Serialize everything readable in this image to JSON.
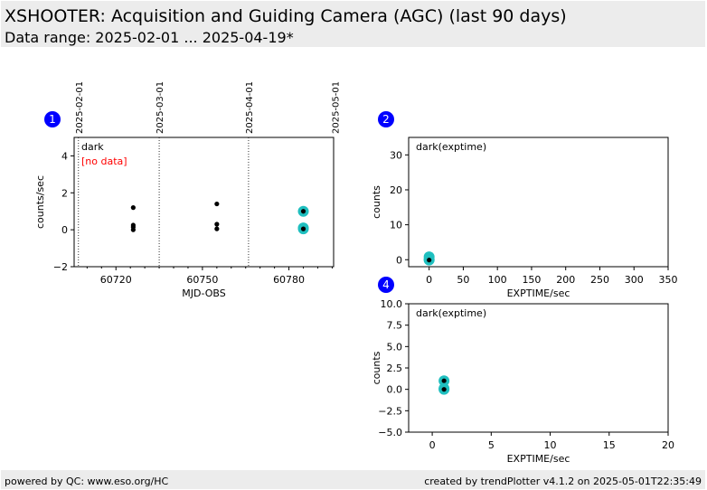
{
  "header": {
    "title": "XSHOOTER: Acquisition and Guiding Camera (AGC) (last 90 days)",
    "subtitle": "Data range: 2025-02-01 ... 2025-04-19*"
  },
  "footer": {
    "left": "powered by QC: www.eso.org/HC",
    "right": "created by trendPlotter v4.1.2 on 2025-05-01T22:35:49"
  },
  "colors": {
    "marker": "#000000",
    "highlight": "#1fbfbf",
    "nodata": "#ff0000",
    "badge": "#0000ff"
  },
  "chart_data": [
    {
      "id": 1,
      "type": "scatter",
      "label": "dark",
      "note": "[no data]",
      "xlabel": "MJD-OBS",
      "ylabel": "counts/sec",
      "xlim": [
        60705.5,
        60795.5
      ],
      "ylim": [
        -2,
        5
      ],
      "xticks": [
        60720,
        60750,
        60780
      ],
      "xtick_labels": [
        "60720",
        "60750",
        "60780"
      ],
      "yticks": [
        -2,
        0,
        2,
        4
      ],
      "ytick_labels": [
        "−2",
        "0",
        "2",
        "4"
      ],
      "date_markers": [
        {
          "x": 60707,
          "label": "2025-02-01"
        },
        {
          "x": 60735,
          "label": "2025-03-01"
        },
        {
          "x": 60766,
          "label": "2025-04-01"
        },
        {
          "x": 60796,
          "label": "2025-05-01"
        }
      ],
      "points": [
        {
          "x": 60726,
          "y": 1.2
        },
        {
          "x": 60726,
          "y": 0.25
        },
        {
          "x": 60726,
          "y": 0.15
        },
        {
          "x": 60726,
          "y": 0.0
        },
        {
          "x": 60755,
          "y": 1.4
        },
        {
          "x": 60755,
          "y": 0.3
        },
        {
          "x": 60755,
          "y": 0.05
        },
        {
          "x": 60785,
          "y": 1.0,
          "highlight": true
        },
        {
          "x": 60785,
          "y": 0.1,
          "highlight": true
        },
        {
          "x": 60785,
          "y": 0.05,
          "highlight": true
        }
      ]
    },
    {
      "id": 2,
      "type": "scatter",
      "label": "dark(exptime)",
      "xlabel": "EXPTIME/sec",
      "ylabel": "counts",
      "xlim": [
        -30,
        350
      ],
      "ylim": [
        -2,
        35
      ],
      "xticks": [
        0,
        50,
        100,
        150,
        200,
        250,
        300,
        350
      ],
      "xtick_labels": [
        "0",
        "50",
        "100",
        "150",
        "200",
        "250",
        "300",
        "350"
      ],
      "yticks": [
        0,
        10,
        20,
        30
      ],
      "ytick_labels": [
        "0",
        "10",
        "20",
        "30"
      ],
      "points": [
        {
          "x": 0,
          "y": 0.8,
          "highlight": true
        },
        {
          "x": 0,
          "y": 0.1,
          "highlight": true
        },
        {
          "x": 0,
          "y": -0.1,
          "highlight": true
        }
      ]
    },
    {
      "id": 4,
      "type": "scatter",
      "label": "dark(exptime)",
      "xlabel": "EXPTIME/sec",
      "ylabel": "counts",
      "xlim": [
        -2,
        20
      ],
      "ylim": [
        -5,
        10
      ],
      "xticks": [
        0,
        5,
        10,
        15,
        20
      ],
      "xtick_labels": [
        "0",
        "5",
        "10",
        "15",
        "20"
      ],
      "yticks": [
        -5,
        -2.5,
        0,
        2.5,
        5,
        7.5,
        10
      ],
      "ytick_labels": [
        "−5.0",
        "−2.5",
        "0.0",
        "2.5",
        "5.0",
        "7.5",
        "10.0"
      ],
      "points": [
        {
          "x": 1,
          "y": 1.0,
          "highlight": true
        },
        {
          "x": 1,
          "y": 0.1,
          "highlight": true
        },
        {
          "x": 1,
          "y": 0.0,
          "highlight": true
        }
      ]
    }
  ]
}
